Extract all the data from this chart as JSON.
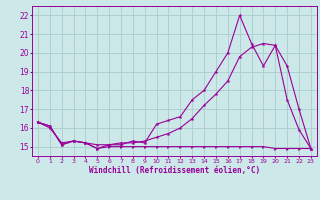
{
  "xlabel": "Windchill (Refroidissement éolien,°C)",
  "background_color": "#cce8e8",
  "grid_color": "#aacccc",
  "line_color": "#990099",
  "xlim": [
    -0.5,
    23.5
  ],
  "ylim": [
    14.5,
    22.5
  ],
  "yticks": [
    15,
    16,
    17,
    18,
    19,
    20,
    21,
    22
  ],
  "xticks": [
    0,
    1,
    2,
    3,
    4,
    5,
    6,
    7,
    8,
    9,
    10,
    11,
    12,
    13,
    14,
    15,
    16,
    17,
    18,
    19,
    20,
    21,
    22,
    23
  ],
  "line1_x": [
    0,
    1,
    2,
    3,
    4,
    5,
    6,
    7,
    8,
    9,
    10,
    11,
    12,
    13,
    14,
    15,
    16,
    17,
    18,
    19,
    20,
    21,
    22,
    23
  ],
  "line1_y": [
    16.3,
    16.1,
    15.1,
    15.3,
    15.2,
    14.9,
    15.1,
    15.1,
    15.3,
    15.2,
    16.2,
    16.4,
    16.6,
    17.5,
    18.0,
    19.0,
    20.0,
    22.0,
    20.5,
    19.3,
    20.4,
    17.5,
    15.9,
    14.9
  ],
  "line2_x": [
    0,
    1,
    2,
    3,
    4,
    5,
    6,
    7,
    8,
    9,
    10,
    11,
    12,
    13,
    14,
    15,
    16,
    17,
    18,
    19,
    20,
    21,
    22,
    23
  ],
  "line2_y": [
    16.3,
    16.0,
    15.2,
    15.3,
    15.2,
    15.1,
    15.1,
    15.2,
    15.2,
    15.3,
    15.5,
    15.7,
    16.0,
    16.5,
    17.2,
    17.8,
    18.5,
    19.8,
    20.3,
    20.5,
    20.4,
    19.3,
    17.0,
    14.9
  ],
  "line3_x": [
    0,
    1,
    2,
    3,
    4,
    5,
    6,
    7,
    8,
    9,
    10,
    11,
    12,
    13,
    14,
    15,
    16,
    17,
    18,
    19,
    20,
    21,
    22,
    23
  ],
  "line3_y": [
    16.3,
    16.1,
    15.1,
    15.3,
    15.2,
    14.9,
    15.0,
    15.0,
    15.0,
    15.0,
    15.0,
    15.0,
    15.0,
    15.0,
    15.0,
    15.0,
    15.0,
    15.0,
    15.0,
    15.0,
    14.9,
    14.9,
    14.9,
    14.9
  ]
}
